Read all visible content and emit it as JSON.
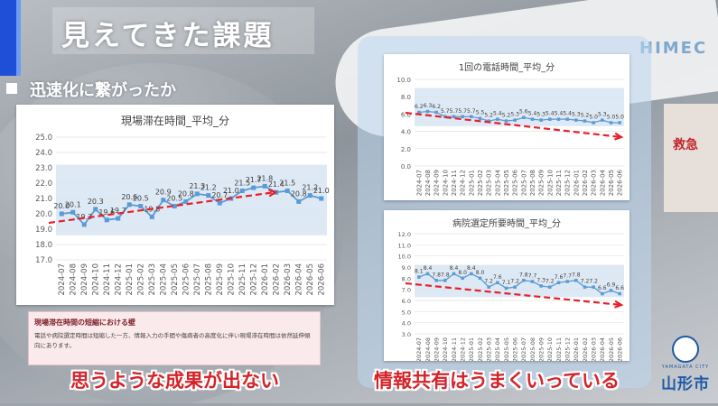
{
  "slide": {
    "title": "見えてきた課題",
    "subtitle": "迅速化に繋がったか",
    "caption_left": "思うような成果が出ない",
    "caption_right": "情報共有はうまくいっている",
    "note_title": "現場滞在時間の短縮における壁",
    "note_body": "電話や病院選定時間は短縮した一方、情報入力の手間や傷病者の高度化に伴い現場滞在時間は依然延伸傾向にあります。",
    "logo_roman": "YAMAGATA CITY",
    "logo_text": "山形市",
    "bg_text_1": "HIMEC",
    "bg_text_2": "救急"
  },
  "colors": {
    "line": "#5b9bd5",
    "trend": "#e8202a",
    "plot_bg": "#dde9f5",
    "accent_blue": "#1e4fd6"
  },
  "chart_data": [
    {
      "type": "line",
      "title": "現場滞在時間_平均_分",
      "categories": [
        "2024-07",
        "2024-08",
        "2024-09",
        "2024-10",
        "2024-11",
        "2024-12",
        "2025-01",
        "2025-02",
        "2025-03",
        "2025-04",
        "2025-05",
        "2025-06",
        "2025-07",
        "2025-08",
        "2025-09",
        "2025-10",
        "2025-11",
        "2025-12",
        "2026-01",
        "2026-02",
        "2026-03",
        "2026-04",
        "2026-05",
        "2026-06"
      ],
      "values": [
        20.0,
        20.1,
        19.3,
        20.3,
        19.6,
        19.7,
        20.6,
        20.5,
        19.8,
        20.9,
        20.5,
        20.8,
        21.3,
        21.2,
        20.7,
        21.0,
        21.5,
        21.7,
        21.8,
        21.4,
        21.5,
        20.8,
        21.2,
        21.0
      ],
      "value_labels": [
        "20.0",
        "20.1",
        "19.3",
        "20.3",
        "19.6",
        "19.7",
        "20.6",
        "20.5",
        "19.8",
        "20.9",
        "20.5",
        "20.8",
        "21.3",
        "21.2",
        "20.7",
        "21.0",
        "21.5",
        "21.7",
        "21.8",
        "21.4",
        "21.5",
        "20.8",
        "21.2",
        "21.0"
      ],
      "ylim": [
        17,
        25
      ],
      "yticks": [
        "17.0",
        "18.0",
        "19.0",
        "20.0",
        "21.0",
        "22.0",
        "23.0",
        "24.0",
        "25.0"
      ],
      "trend": "up",
      "grid": true
    },
    {
      "type": "line",
      "title": "1回の電話時間_平均_分",
      "categories": [
        "2024-07",
        "2024-08",
        "2024-09",
        "2024-10",
        "2024-11",
        "2024-12",
        "2025-01",
        "2025-02",
        "2025-03",
        "2025-04",
        "2025-05",
        "2025-06",
        "2025-07",
        "2025-08",
        "2025-09",
        "2025-10",
        "2025-11",
        "2025-12",
        "2026-01",
        "2026-02",
        "2026-03",
        "2026-04",
        "2026-05",
        "2026-06"
      ],
      "values": [
        6.2,
        6.3,
        6.2,
        5.7,
        5.7,
        5.7,
        5.7,
        5.5,
        5.2,
        5.4,
        5.2,
        5.3,
        5.6,
        5.4,
        5.3,
        5.4,
        5.4,
        5.4,
        5.3,
        5.2,
        5.0,
        5.3,
        5.0,
        5.0
      ],
      "value_labels": [
        "6.2",
        "6.3",
        "6.2",
        "5.7",
        "5.7",
        "5.7",
        "5.7",
        "5.5",
        "5.2",
        "5.4",
        "5.2",
        "5.3",
        "5.6",
        "5.4",
        "5.3",
        "5.4",
        "5.4",
        "5.4",
        "5.3",
        "5.2",
        "5.0",
        "5.3",
        "5.0",
        "5.0"
      ],
      "ylim": [
        0,
        10
      ],
      "yticks": [
        "0.0",
        "2.0",
        "4.0",
        "6.0",
        "8.0",
        "10.0"
      ],
      "trend": "down",
      "grid": true
    },
    {
      "type": "line",
      "title": "病院選定所要時間_平均_分",
      "categories": [
        "2024-07",
        "2024-08",
        "2024-09",
        "2024-10",
        "2024-11",
        "2024-12",
        "2025-01",
        "2025-02",
        "2025-03",
        "2025-04",
        "2025-05",
        "2025-06",
        "2025-07",
        "2025-08",
        "2025-09",
        "2025-10",
        "2025-11",
        "2025-12",
        "2026-01",
        "2026-02",
        "2026-03",
        "2026-04",
        "2026-05",
        "2026-06"
      ],
      "values": [
        8.1,
        8.4,
        7.8,
        7.8,
        8.4,
        8.0,
        8.4,
        8.0,
        7.2,
        7.6,
        7.1,
        7.2,
        7.8,
        7.7,
        7.3,
        7.2,
        7.6,
        7.7,
        7.8,
        7.2,
        7.2,
        6.6,
        6.9,
        6.6
      ],
      "value_labels": [
        "8.1",
        "8.4",
        "7.8",
        "7.8",
        "8.4",
        "8.0",
        "8.4",
        "8.0",
        "7.2",
        "7.6",
        "7.1",
        "7.2",
        "7.8",
        "7.7",
        "7.3",
        "7.2",
        "7.6",
        "7.7",
        "7.8",
        "7.2",
        "7.2",
        "6.6",
        "6.9",
        "6.6"
      ],
      "ylim": [
        3,
        12
      ],
      "yticks": [
        "3.0",
        "4.0",
        "5.0",
        "6.0",
        "7.0",
        "8.0",
        "9.0",
        "10.0",
        "11.0",
        "12.0"
      ],
      "trend": "down",
      "grid": true
    }
  ]
}
